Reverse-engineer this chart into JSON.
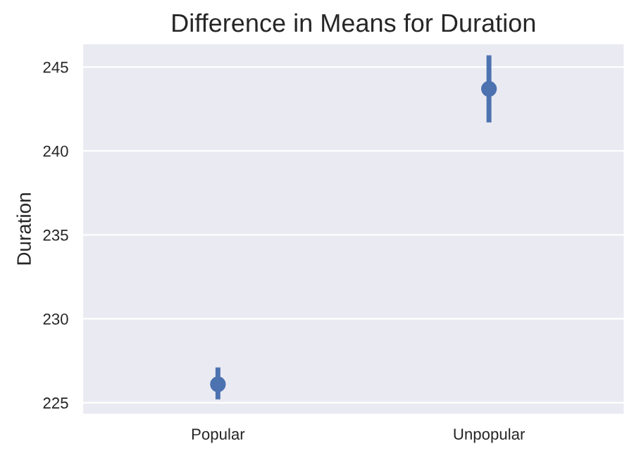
{
  "chart_data": {
    "type": "scatter",
    "title": "Difference in Means for Duration",
    "ylabel": "Duration",
    "categories": [
      "Popular",
      "Unpopular"
    ],
    "series": [
      {
        "color": "#4c72b0",
        "values": [
          226.1,
          243.7
        ],
        "errors": [
          [
            225.2,
            227.1
          ],
          [
            241.7,
            245.7
          ]
        ]
      }
    ],
    "ylim": [
      224.3,
      246.4
    ],
    "yticks": [
      225,
      230,
      235,
      240,
      245
    ],
    "grid": "y",
    "marker": "circle"
  }
}
